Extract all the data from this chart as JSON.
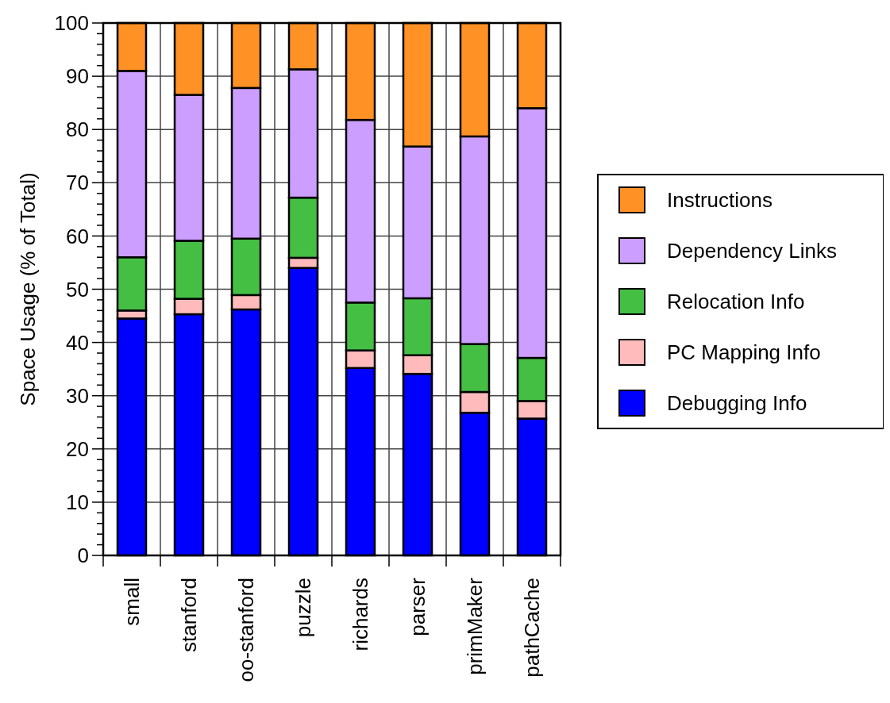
{
  "chart_data": {
    "type": "bar",
    "stacked": true,
    "ylabel": "Space Usage (% of Total)",
    "categories": [
      "small",
      "stanford",
      "oo-stanford",
      "puzzle",
      "richards",
      "parser",
      "primMaker",
      "pathCache"
    ],
    "series": [
      {
        "name": "Debugging Info",
        "color": "#0000ff",
        "values": [
          44.5,
          45.3,
          46.2,
          54,
          35.2,
          34.1,
          26.8,
          25.7
        ]
      },
      {
        "name": "PC Mapping Info",
        "color": "#ffbbbb",
        "values": [
          1.5,
          2.9,
          2.7,
          1.9,
          3.3,
          3.5,
          3.9,
          3.3
        ]
      },
      {
        "name": "Relocation Info",
        "color": "#44bf44",
        "values": [
          10,
          10.9,
          10.6,
          11.3,
          9,
          10.7,
          9,
          8.1
        ]
      },
      {
        "name": "Dependency Links",
        "color": "#cc9eff",
        "values": [
          35,
          27.4,
          28.3,
          24.1,
          34.3,
          28.5,
          39,
          46.9
        ]
      },
      {
        "name": "Instructions",
        "color": "#ff9125",
        "values": [
          9,
          13.5,
          12.2,
          8.7,
          18.2,
          23.2,
          21.3,
          16
        ]
      }
    ],
    "ylim": [
      0,
      100
    ],
    "yticks": [
      0,
      {
        "value": 2,
        "label": null
      },
      {
        "value": 4,
        "label": null
      },
      {
        "value": 6,
        "label": null
      },
      {
        "value": 8,
        "label": null
      },
      10,
      {
        "value": 12,
        "label": null
      },
      {
        "value": 14,
        "label": null
      },
      {
        "value": 16,
        "label": null
      },
      {
        "value": 18,
        "label": null
      },
      20,
      {
        "value": 22,
        "label": null
      },
      {
        "value": 24,
        "label": null
      },
      {
        "value": 26,
        "label": null
      },
      {
        "value": 28,
        "label": null
      },
      30,
      {
        "value": 32,
        "label": null
      },
      {
        "value": 34,
        "label": null
      },
      {
        "value": 36,
        "label": null
      },
      {
        "value": 38,
        "label": null
      },
      40,
      {
        "value": 42,
        "label": null
      },
      {
        "value": 44,
        "label": null
      },
      {
        "value": 46,
        "label": null
      },
      {
        "value": 48,
        "label": null
      },
      50,
      {
        "value": 52,
        "label": null
      },
      {
        "value": 54,
        "label": null
      },
      {
        "value": 56,
        "label": null
      },
      {
        "value": 58,
        "label": null
      },
      60,
      {
        "value": 62,
        "label": null
      },
      {
        "value": 64,
        "label": null
      },
      {
        "value": 66,
        "label": null
      },
      {
        "value": 68,
        "label": null
      },
      70,
      {
        "value": 72,
        "label": null
      },
      {
        "value": 74,
        "label": null
      },
      {
        "value": 76,
        "label": null
      },
      {
        "value": 78,
        "label": null
      },
      80,
      {
        "value": 82,
        "label": null
      },
      {
        "value": 84,
        "label": null
      },
      {
        "value": 86,
        "label": null
      },
      {
        "value": 88,
        "label": null
      },
      90,
      {
        "value": 92,
        "label": null
      },
      {
        "value": 94,
        "label": null
      },
      {
        "value": 96,
        "label": null
      },
      {
        "value": 98,
        "label": null
      },
      100
    ],
    "grid": true,
    "legend": "right"
  }
}
